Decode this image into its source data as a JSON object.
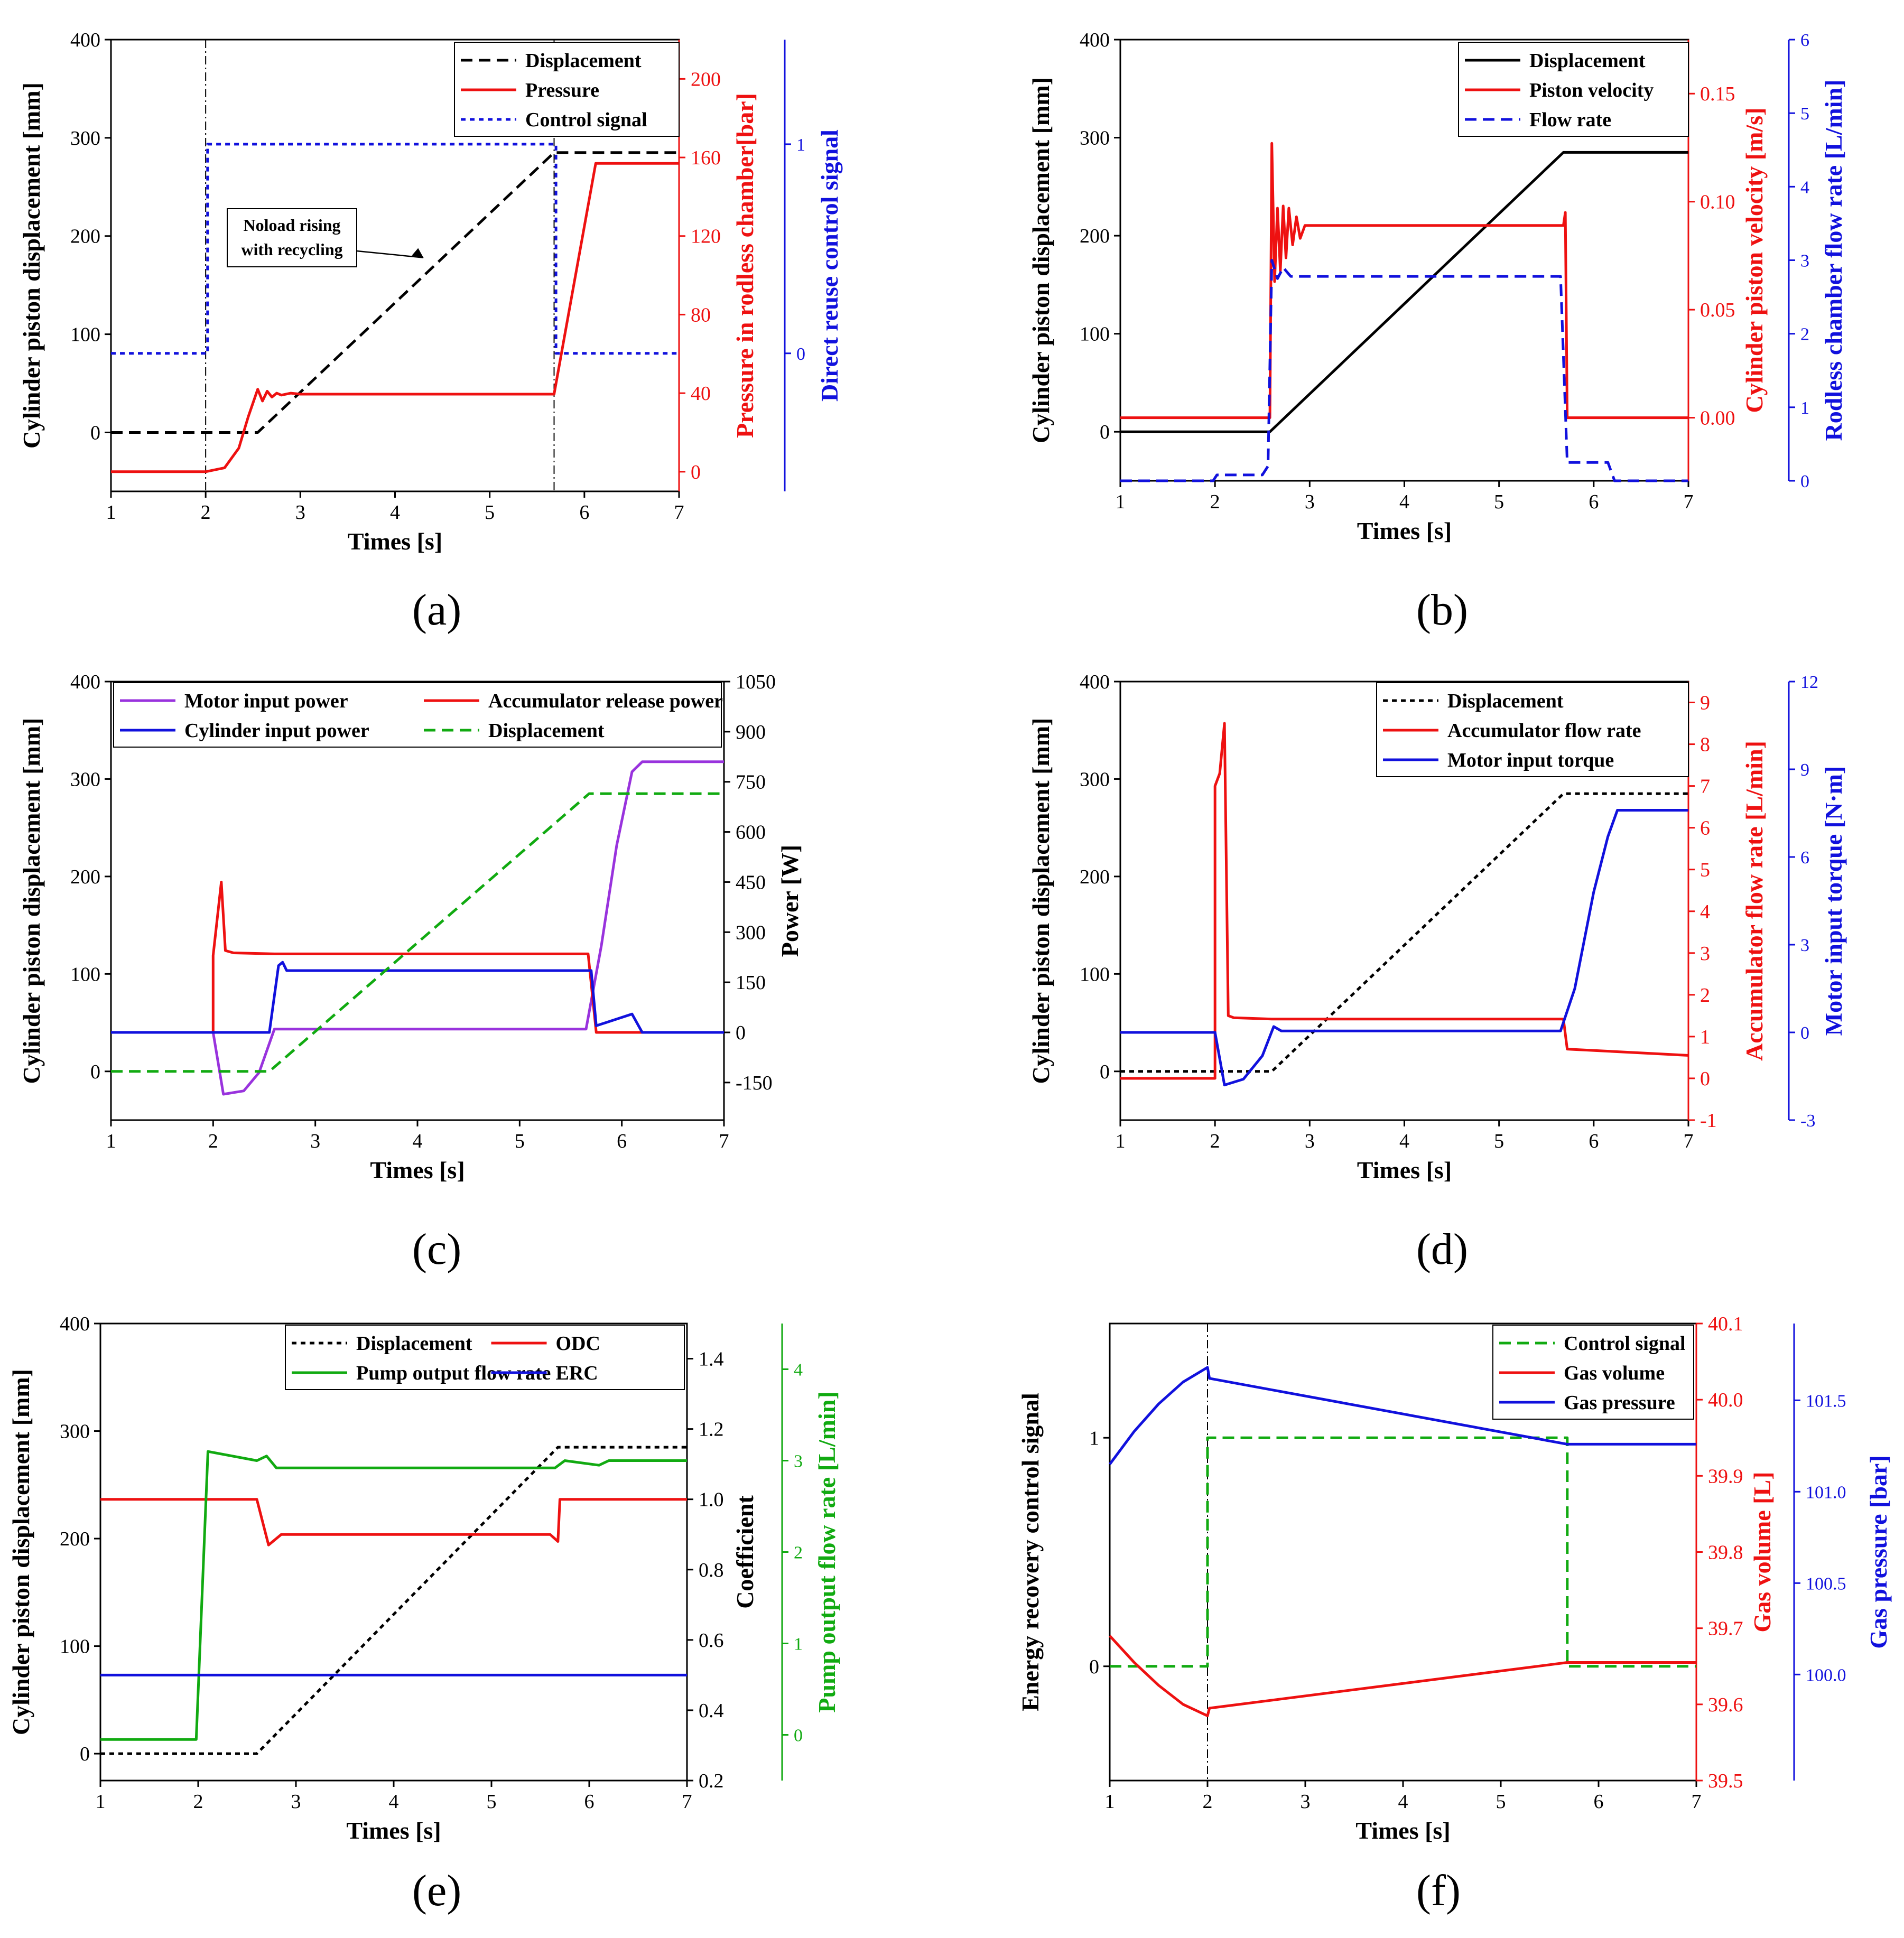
{
  "figure": {
    "panels": [
      "(a)",
      "(b)",
      "(c)",
      "(d)",
      "(e)",
      "(f)"
    ]
  },
  "chart_data": [
    {
      "id": "a",
      "type": "line",
      "xlabel": "Times [s]",
      "ylabel": "Cylinder piston displacement [mm]",
      "y2label": "Pressure in rodless chamber[bar]",
      "y3label": "Direct reuse control signal",
      "xlim": [
        1,
        7
      ],
      "ylim": [
        -60,
        400
      ],
      "y2lim": [
        -10,
        220
      ],
      "y3lim": [
        -0.66,
        1.5
      ],
      "xticks": [
        "1",
        "2",
        "3",
        "4",
        "5",
        "6",
        "7"
      ],
      "yticks": [
        "0",
        "100",
        "200",
        "300",
        "400"
      ],
      "y2ticks": [
        "0",
        "40",
        "80",
        "120",
        "160",
        "200"
      ],
      "y3ticks": [
        "0",
        "1"
      ],
      "colors": {
        "axis2": "#ee1111",
        "axis3": "#1111dd"
      },
      "annotation": {
        "text_lines": [
          "Noload rising",
          "with recycling"
        ],
        "arrow_to": [
          4.3,
          178
        ]
      },
      "vlines": [
        2,
        5.68
      ],
      "legend": {
        "position": "top-right",
        "entries": [
          "Displacement",
          "Pressure",
          "Control signal"
        ]
      },
      "series": [
        {
          "name": "Displacement",
          "axis": "y",
          "color": "#000000",
          "style": "dash",
          "x": [
            1,
            2.55,
            5.68,
            7
          ],
          "y": [
            0,
            0,
            285,
            285
          ]
        },
        {
          "name": "Pressure",
          "axis": "y2",
          "color": "#ee1111",
          "style": "solid",
          "x": [
            1,
            2.0,
            2.2,
            2.35,
            2.45,
            2.55,
            2.6,
            2.65,
            2.7,
            2.75,
            2.8,
            2.9,
            3.0,
            5.68,
            6.12,
            7
          ],
          "y": [
            0,
            0,
            2,
            12,
            28,
            42,
            36,
            41,
            38,
            40,
            39,
            40,
            39.5,
            39.5,
            157,
            157
          ]
        },
        {
          "name": "Control signal",
          "axis": "y3",
          "color": "#1111dd",
          "style": "dot",
          "x": [
            1,
            2.02,
            2.02,
            5.7,
            5.7,
            7
          ],
          "y": [
            0,
            0,
            1,
            1,
            0,
            0
          ]
        }
      ]
    },
    {
      "id": "b",
      "type": "line",
      "xlabel": "Times [s]",
      "ylabel": "Cylinder piston displacement [mm]",
      "y2label": "Cylinder piston velocity [m/s]",
      "y3label": "Rodless chamber flow rate  [L/min]",
      "xlim": [
        1,
        7
      ],
      "ylim": [
        -50,
        400
      ],
      "y2lim": [
        -0.0292,
        0.175
      ],
      "y3lim": [
        0,
        6
      ],
      "xticks": [
        "1",
        "2",
        "3",
        "4",
        "5",
        "6",
        "7"
      ],
      "yticks": [
        "0",
        "100",
        "200",
        "300",
        "400"
      ],
      "y2ticks": [
        "0.00",
        "0.05",
        "0.10",
        "0.15"
      ],
      "y3ticks": [
        "0",
        "1",
        "2",
        "3",
        "4",
        "5",
        "6"
      ],
      "colors": {
        "axis2": "#ee1111",
        "axis3": "#1111dd"
      },
      "legend": {
        "position": "top-right",
        "entries": [
          "Displacement",
          "Piston velocity",
          "Flow rate"
        ]
      },
      "series": [
        {
          "name": "Displacement",
          "axis": "y",
          "color": "#000000",
          "style": "solid",
          "x": [
            1,
            2.58,
            5.68,
            7
          ],
          "y": [
            0,
            0,
            285,
            285
          ]
        },
        {
          "name": "Piston velocity",
          "axis": "y2",
          "color": "#ee1111",
          "style": "solid",
          "x": [
            1,
            2.58,
            2.6,
            2.63,
            2.66,
            2.69,
            2.72,
            2.75,
            2.78,
            2.82,
            2.86,
            2.9,
            2.95,
            5.68,
            5.7,
            5.72,
            7
          ],
          "y": [
            0,
            0,
            0.127,
            0.063,
            0.097,
            0.068,
            0.098,
            0.074,
            0.097,
            0.08,
            0.093,
            0.083,
            0.089,
            0.089,
            0.095,
            0,
            0
          ]
        },
        {
          "name": "Flow rate",
          "axis": "y3",
          "color": "#1111dd",
          "style": "dash",
          "x": [
            1,
            1.98,
            2.02,
            2.5,
            2.56,
            2.6,
            2.66,
            2.72,
            2.8,
            5.65,
            5.72,
            5.78,
            6.15,
            6.22,
            7
          ],
          "y": [
            0,
            0,
            0.08,
            0.08,
            0.2,
            3.0,
            2.75,
            2.9,
            2.78,
            2.78,
            0.25,
            0.25,
            0.25,
            0,
            0
          ]
        }
      ]
    },
    {
      "id": "c",
      "type": "line",
      "xlabel": "Times [s]",
      "ylabel": "Cylinder piston displacement [mm]",
      "y2label": "Power [W]",
      "xlim": [
        1,
        7
      ],
      "ylim": [
        -50,
        400
      ],
      "y2lim": [
        -262.5,
        1050
      ],
      "xticks": [
        "1",
        "2",
        "3",
        "4",
        "5",
        "6",
        "7"
      ],
      "yticks": [
        "0",
        "100",
        "200",
        "300",
        "400"
      ],
      "y2ticks": [
        "-150",
        "0",
        "150",
        "300",
        "450",
        "600",
        "750",
        "900",
        "1050"
      ],
      "legend": {
        "position": "top",
        "entries": [
          "Motor input power",
          "Accumulator release power",
          "Cylinder input power",
          "Displacement"
        ]
      },
      "series": [
        {
          "name": "Motor input power",
          "axis": "y2",
          "color": "#9933dd",
          "style": "solid",
          "x": [
            1,
            2.0,
            2.1,
            2.3,
            2.45,
            2.6,
            2.7,
            5.65,
            5.8,
            5.95,
            6.1,
            6.2,
            7
          ],
          "y": [
            0,
            0,
            -185,
            -175,
            -120,
            10,
            10,
            10,
            260,
            560,
            780,
            810,
            810
          ]
        },
        {
          "name": "Accumulator release power",
          "axis": "y2",
          "color": "#ee1111",
          "style": "solid",
          "x": [
            1,
            2.0,
            2.0,
            2.08,
            2.12,
            2.2,
            2.6,
            5.67,
            5.75,
            7
          ],
          "y": [
            0,
            0,
            230,
            450,
            245,
            238,
            235,
            235,
            0,
            0
          ]
        },
        {
          "name": "Cylinder input power",
          "axis": "y2",
          "color": "#1111dd",
          "style": "solid",
          "x": [
            1,
            2.55,
            2.64,
            2.68,
            2.72,
            2.8,
            5.7,
            5.75,
            6.1,
            6.2,
            7
          ],
          "y": [
            0,
            0,
            200,
            210,
            185,
            185,
            185,
            20,
            55,
            0,
            0
          ]
        },
        {
          "name": "Displacement",
          "axis": "y",
          "color": "#11aa11",
          "style": "dash",
          "x": [
            1,
            2.55,
            5.68,
            7
          ],
          "y": [
            0,
            0,
            285,
            285
          ]
        }
      ]
    },
    {
      "id": "d",
      "type": "line",
      "xlabel": "Times [s]",
      "ylabel": "Cylinder piston displacement [mm]",
      "y2label": "Accumulator flow rate [L/min]",
      "y3label": "Motor input torque [N·m]",
      "xlim": [
        1,
        7
      ],
      "ylim": [
        -50,
        400
      ],
      "y2lim": [
        -1,
        9.5
      ],
      "y3lim": [
        -3,
        12
      ],
      "xticks": [
        "1",
        "2",
        "3",
        "4",
        "5",
        "6",
        "7"
      ],
      "yticks": [
        "0",
        "100",
        "200",
        "300",
        "400"
      ],
      "y2ticks": [
        "-1",
        "0",
        "1",
        "2",
        "3",
        "4",
        "5",
        "6",
        "7",
        "8",
        "9"
      ],
      "y3ticks": [
        "-3",
        "0",
        "3",
        "6",
        "9",
        "12"
      ],
      "colors": {
        "axis2": "#ee1111",
        "axis3": "#1111dd"
      },
      "legend": {
        "position": "top-right",
        "entries": [
          "Displacement",
          "Accumulator flow rate",
          "Motor input torque"
        ]
      },
      "series": [
        {
          "name": "Displacement",
          "axis": "y",
          "color": "#000000",
          "style": "dot",
          "x": [
            1,
            2.6,
            5.68,
            7
          ],
          "y": [
            0,
            0,
            285,
            285
          ]
        },
        {
          "name": "Accumulator flow rate",
          "axis": "y2",
          "color": "#ee1111",
          "style": "solid",
          "x": [
            1,
            2.0,
            2.0,
            2.05,
            2.1,
            2.14,
            2.2,
            2.6,
            5.68,
            5.72,
            7
          ],
          "y": [
            0,
            0,
            7.0,
            7.3,
            8.5,
            1.5,
            1.45,
            1.42,
            1.42,
            0.7,
            0.55
          ]
        },
        {
          "name": "Motor input torque",
          "axis": "y3",
          "color": "#1111dd",
          "style": "solid",
          "x": [
            1,
            2.0,
            2.1,
            2.3,
            2.5,
            2.62,
            2.7,
            5.65,
            5.8,
            6.0,
            6.15,
            6.25,
            7
          ],
          "y": [
            0,
            0,
            -1.8,
            -1.6,
            -0.8,
            0.2,
            0.05,
            0.05,
            1.5,
            4.8,
            6.7,
            7.6,
            7.6
          ]
        }
      ]
    },
    {
      "id": "e",
      "type": "line",
      "xlabel": "Times [s]",
      "ylabel": "Cylinder piston displacement [mm]",
      "y2label": "Coefficient",
      "y3label": "Pump output flow rate [L/min]",
      "xlim": [
        1,
        7
      ],
      "ylim": [
        -25,
        400
      ],
      "y2lim": [
        0.2,
        1.5
      ],
      "y3lim": [
        -0.5,
        4.5
      ],
      "xticks": [
        "1",
        "2",
        "3",
        "4",
        "5",
        "6",
        "7"
      ],
      "yticks": [
        "0",
        "100",
        "200",
        "300",
        "400"
      ],
      "y2ticks": [
        "0.2",
        "0.4",
        "0.6",
        "0.8",
        "1.0",
        "1.2",
        "1.4"
      ],
      "y3ticks": [
        "0",
        "1",
        "2",
        "3",
        "4"
      ],
      "colors": {
        "axis3": "#11aa11"
      },
      "legend": {
        "position": "top-right",
        "entries": [
          "Displacement",
          "ODC",
          "Pump output flow rate",
          "ERC"
        ]
      },
      "series": [
        {
          "name": "Displacement",
          "axis": "y",
          "color": "#000000",
          "style": "dot",
          "x": [
            1,
            2.6,
            5.68,
            7
          ],
          "y": [
            0,
            0,
            285,
            285
          ]
        },
        {
          "name": "ODC",
          "axis": "y2",
          "color": "#ee1111",
          "style": "solid",
          "x": [
            1,
            2.6,
            2.72,
            2.85,
            5.6,
            5.68,
            5.7,
            7
          ],
          "y": [
            1.0,
            1.0,
            0.87,
            0.9,
            0.9,
            0.88,
            1.0,
            1.0
          ]
        },
        {
          "name": "Pump output flow rate",
          "axis": "y3",
          "color": "#11aa11",
          "style": "solid",
          "x": [
            1,
            1.98,
            2.1,
            2.6,
            2.7,
            2.8,
            5.65,
            5.75,
            6.1,
            6.2,
            7
          ],
          "y": [
            -0.05,
            -0.05,
            3.1,
            3.0,
            3.05,
            2.92,
            2.92,
            3.0,
            2.95,
            3.0,
            3.0
          ]
        },
        {
          "name": "ERC",
          "axis": "y2",
          "color": "#1111dd",
          "style": "solid",
          "x": [
            1,
            7
          ],
          "y": [
            0.5,
            0.5
          ]
        }
      ]
    },
    {
      "id": "f",
      "type": "line",
      "xlabel": "Times [s]",
      "ylabel": "Energy recovery control signal",
      "y2label": "Gas volume [L]",
      "y3label": "Gas pressure [bar]",
      "xlim": [
        1,
        7
      ],
      "ylim": [
        -0.5,
        1.5
      ],
      "y2lim": [
        39.5,
        40.1
      ],
      "y3lim": [
        99.42,
        101.92
      ],
      "xticks": [
        "1",
        "2",
        "3",
        "4",
        "5",
        "6",
        "7"
      ],
      "yticks": [
        "0",
        "1"
      ],
      "y2ticks": [
        "39.5",
        "39.6",
        "39.7",
        "39.8",
        "39.9",
        "40.0",
        "40.1"
      ],
      "y3ticks": [
        "100.0",
        "100.5",
        "101.0",
        "101.5"
      ],
      "colors": {
        "axis2": "#ee1111",
        "axis3": "#1111dd"
      },
      "vlines": [
        2
      ],
      "legend": {
        "position": "top-right",
        "entries": [
          "Control signal",
          "Gas volume",
          "Gas pressure"
        ]
      },
      "series": [
        {
          "name": "Control signal",
          "axis": "y",
          "color": "#11aa11",
          "style": "dash",
          "x": [
            1,
            2.0,
            2.0,
            5.68,
            5.68,
            7
          ],
          "y": [
            0,
            0,
            1,
            1,
            0,
            0
          ]
        },
        {
          "name": "Gas volume",
          "axis": "y2",
          "color": "#ee1111",
          "style": "solid",
          "x": [
            1,
            1.25,
            1.5,
            1.75,
            2.0,
            2.02,
            5.68,
            7
          ],
          "y": [
            39.69,
            39.655,
            39.625,
            39.6,
            39.585,
            39.595,
            39.655,
            39.655
          ]
        },
        {
          "name": "Gas pressure",
          "axis": "y3",
          "color": "#1111dd",
          "style": "solid",
          "x": [
            1,
            1.25,
            1.5,
            1.75,
            2.0,
            2.02,
            5.68,
            7
          ],
          "y": [
            101.15,
            101.33,
            101.48,
            101.6,
            101.68,
            101.62,
            101.26,
            101.26
          ]
        }
      ]
    }
  ]
}
